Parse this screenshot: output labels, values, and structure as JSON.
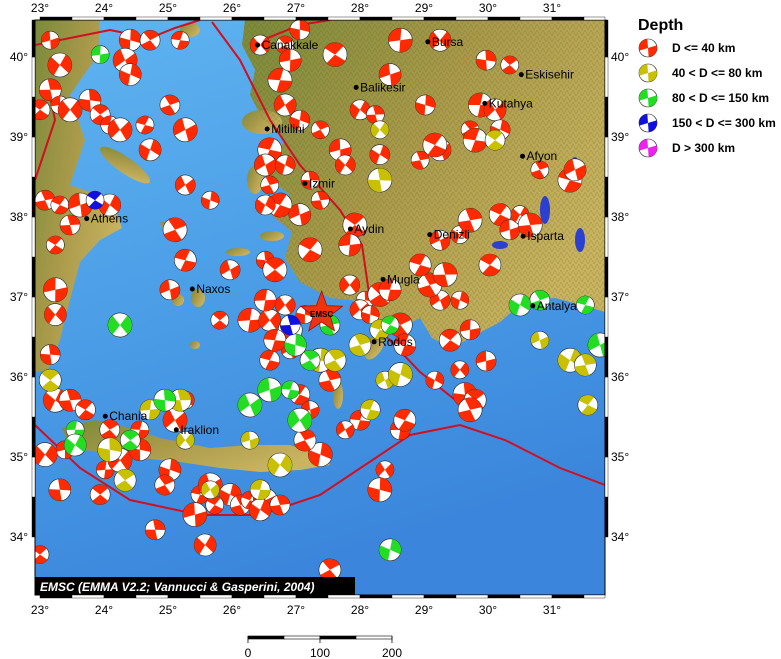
{
  "legend": {
    "title": "Depth",
    "items": [
      {
        "label": "D <= 40 km",
        "color": "#ff2a00"
      },
      {
        "label": "40 < D <= 80 km",
        "color": "#c8c000"
      },
      {
        "label": "80 < D <= 150 km",
        "color": "#22dd22"
      },
      {
        "label": "150 < D <= 300 km",
        "color": "#1010e0"
      },
      {
        "label": "D > 300 km",
        "color": "#ee22ee"
      }
    ]
  },
  "credit": "EMSC (EMMA V2.2; Vannucci & Gasperini, 2004)",
  "epicenter": {
    "label": "EMSC",
    "lon": 27.4,
    "lat": 36.8,
    "color": "#ee3311"
  },
  "axes": {
    "lon_ticks": [
      "23°",
      "24°",
      "25°",
      "26°",
      "27°",
      "28°",
      "29°",
      "30°",
      "31°"
    ],
    "lat_ticks": [
      "40°",
      "39°",
      "38°",
      "37°",
      "36°",
      "35°",
      "34°"
    ],
    "lon_range": [
      22.92,
      31.8
    ],
    "lat_range": [
      33.7,
      40.46
    ]
  },
  "scale_bar": {
    "labels": [
      "0",
      "100",
      "200"
    ],
    "unit_max": 200
  },
  "cities": [
    {
      "name": "Canakkale",
      "lon": 26.4,
      "lat": 40.15
    },
    {
      "name": "Bursa",
      "lon": 29.06,
      "lat": 40.19
    },
    {
      "name": "Balikesir",
      "lon": 27.94,
      "lat": 39.62
    },
    {
      "name": "Eskisehir",
      "lon": 30.52,
      "lat": 39.78
    },
    {
      "name": "Kutahya",
      "lon": 29.95,
      "lat": 39.42
    },
    {
      "name": "Mitilini",
      "lon": 26.55,
      "lat": 39.1
    },
    {
      "name": "Izmir",
      "lon": 27.14,
      "lat": 38.42
    },
    {
      "name": "Aydin",
      "lon": 27.85,
      "lat": 37.85
    },
    {
      "name": "Denizli",
      "lon": 29.09,
      "lat": 37.78
    },
    {
      "name": "Afyon",
      "lon": 30.54,
      "lat": 38.76
    },
    {
      "name": "Isparta",
      "lon": 30.55,
      "lat": 37.76
    },
    {
      "name": "Mugla",
      "lon": 28.36,
      "lat": 37.22
    },
    {
      "name": "Rodos",
      "lon": 28.22,
      "lat": 36.44
    },
    {
      "name": "Antalya",
      "lon": 30.7,
      "lat": 36.89
    },
    {
      "name": "Athens",
      "lon": 23.73,
      "lat": 37.98
    },
    {
      "name": "Naxos",
      "lon": 25.38,
      "lat": 37.1
    },
    {
      "name": "Chania",
      "lon": 24.02,
      "lat": 35.51
    },
    {
      "name": "Iraklion",
      "lon": 25.13,
      "lat": 35.34
    }
  ],
  "events": [
    [
      23.16,
      40.21,
      0
    ],
    [
      23.31,
      39.9,
      0
    ],
    [
      23.16,
      39.59,
      0
    ],
    [
      23.0,
      39.34,
      0
    ],
    [
      23.31,
      39.4,
      0
    ],
    [
      23.47,
      39.34,
      0
    ],
    [
      23.78,
      39.46,
      0
    ],
    [
      23.94,
      39.28,
      0
    ],
    [
      24.09,
      39.15,
      0
    ],
    [
      24.25,
      39.09,
      0
    ],
    [
      24.41,
      40.21,
      0
    ],
    [
      24.72,
      40.21,
      0
    ],
    [
      25.19,
      40.21,
      0
    ],
    [
      24.33,
      39.96,
      0
    ],
    [
      24.41,
      39.78,
      0
    ],
    [
      25.03,
      39.4,
      0
    ],
    [
      24.64,
      39.15,
      0
    ],
    [
      25.27,
      39.09,
      0
    ],
    [
      24.72,
      38.84,
      0
    ],
    [
      23.08,
      38.21,
      0
    ],
    [
      23.31,
      38.15,
      0
    ],
    [
      23.63,
      38.15,
      0
    ],
    [
      24.09,
      38.15,
      0
    ],
    [
      23.47,
      37.9,
      0
    ],
    [
      23.24,
      37.65,
      0
    ],
    [
      23.24,
      37.09,
      0
    ],
    [
      23.24,
      36.78,
      0
    ],
    [
      23.16,
      36.28,
      0
    ],
    [
      25.81,
      36.71,
      0
    ],
    [
      26.28,
      36.71,
      0
    ],
    [
      26.59,
      36.71,
      0
    ],
    [
      27.06,
      40.34,
      0
    ],
    [
      26.83,
      40.15,
      0
    ],
    [
      26.75,
      39.71,
      0
    ],
    [
      26.83,
      39.4,
      0
    ],
    [
      27.06,
      39.21,
      0
    ],
    [
      27.38,
      39.09,
      0
    ],
    [
      26.59,
      38.84,
      0
    ],
    [
      26.52,
      38.65,
      0
    ],
    [
      26.83,
      38.65,
      0
    ],
    [
      26.59,
      38.4,
      0
    ],
    [
      26.75,
      38.15,
      0
    ],
    [
      27.06,
      38.03,
      0
    ],
    [
      26.52,
      38.15,
      0
    ],
    [
      27.38,
      38.21,
      0
    ],
    [
      27.22,
      37.59,
      0
    ],
    [
      27.69,
      38.84,
      0
    ],
    [
      27.77,
      38.65,
      0
    ],
    [
      27.22,
      38.46,
      0
    ],
    [
      27.92,
      37.9,
      0
    ],
    [
      27.84,
      37.65,
      0
    ],
    [
      27.84,
      37.15,
      0
    ],
    [
      28.08,
      36.96,
      0
    ],
    [
      28.31,
      37.03,
      0
    ],
    [
      28.47,
      37.09,
      0
    ],
    [
      28.0,
      36.84,
      0
    ],
    [
      28.16,
      36.78,
      0
    ],
    [
      28.63,
      36.65,
      0
    ],
    [
      28.7,
      36.4,
      0
    ],
    [
      29.25,
      36.96,
      0
    ],
    [
      29.56,
      36.96,
      0
    ],
    [
      29.09,
      37.15,
      0
    ],
    [
      28.94,
      37.4,
      0
    ],
    [
      29.25,
      37.71,
      0
    ],
    [
      29.56,
      37.78,
      0
    ],
    [
      29.72,
      37.96,
      0
    ],
    [
      30.19,
      38.03,
      0
    ],
    [
      30.34,
      37.84,
      0
    ],
    [
      30.5,
      38.03,
      0
    ],
    [
      29.33,
      37.28,
      0
    ],
    [
      29.41,
      36.46,
      0
    ],
    [
      29.72,
      36.59,
      0
    ],
    [
      29.56,
      36.09,
      0
    ],
    [
      29.64,
      35.78,
      0
    ],
    [
      29.8,
      35.71,
      0
    ],
    [
      28.63,
      35.34,
      0
    ],
    [
      28.39,
      34.84,
      0
    ],
    [
      28.31,
      34.59,
      0
    ],
    [
      27.53,
      33.59,
      0
    ],
    [
      28.0,
      35.46,
      0
    ],
    [
      27.77,
      35.34,
      0
    ],
    [
      27.38,
      35.03,
      0
    ],
    [
      27.14,
      35.21,
      0
    ],
    [
      26.59,
      36.21,
      0
    ],
    [
      26.91,
      36.34,
      0
    ],
    [
      27.38,
      36.21,
      0
    ],
    [
      27.53,
      35.96,
      0
    ],
    [
      27.06,
      35.78,
      0
    ],
    [
      27.22,
      35.59,
      0
    ],
    [
      23.24,
      35.71,
      0
    ],
    [
      23.47,
      35.71,
      0
    ],
    [
      23.71,
      35.59,
      0
    ],
    [
      23.39,
      35.09,
      0
    ],
    [
      23.08,
      35.03,
      0
    ],
    [
      23.31,
      34.59,
      0
    ],
    [
      23.94,
      34.53,
      0
    ],
    [
      24.02,
      34.84,
      0
    ],
    [
      24.25,
      34.96,
      0
    ],
    [
      24.56,
      35.09,
      0
    ],
    [
      24.09,
      35.34,
      0
    ],
    [
      24.56,
      35.34,
      0
    ],
    [
      25.11,
      35.46,
      0
    ],
    [
      25.03,
      34.84,
      0
    ],
    [
      24.95,
      34.65,
      0
    ],
    [
      25.5,
      34.53,
      0
    ],
    [
      25.66,
      34.65,
      0
    ],
    [
      25.97,
      34.53,
      0
    ],
    [
      26.13,
      34.4,
      0
    ],
    [
      26.28,
      34.46,
      0
    ],
    [
      26.52,
      34.46,
      0
    ],
    [
      26.44,
      34.34,
      0
    ],
    [
      26.75,
      34.4,
      0
    ],
    [
      25.73,
      34.4,
      0
    ],
    [
      25.42,
      34.28,
      0
    ],
    [
      25.58,
      33.9,
      0
    ],
    [
      24.8,
      34.09,
      0
    ],
    [
      23.0,
      33.78,
      0
    ],
    [
      28.63,
      40.21,
      0
    ],
    [
      29.25,
      40.21,
      0
    ],
    [
      29.97,
      39.96,
      0
    ],
    [
      30.34,
      39.9,
      0
    ],
    [
      29.88,
      39.4,
      0
    ],
    [
      30.11,
      39.34,
      0
    ],
    [
      29.02,
      39.4,
      0
    ],
    [
      29.72,
      39.09,
      0
    ],
    [
      29.8,
      38.96,
      0
    ],
    [
      29.25,
      38.84,
      0
    ],
    [
      30.19,
      39.09,
      0
    ],
    [
      30.81,
      38.59,
      0
    ],
    [
      31.28,
      38.46,
      0
    ],
    [
      31.36,
      38.59,
      0
    ],
    [
      28.31,
      38.78,
      0
    ],
    [
      28.94,
      38.71,
      0
    ],
    [
      29.17,
      38.9,
      0
    ],
    [
      28.47,
      39.78,
      0
    ],
    [
      28.0,
      39.34,
      0
    ],
    [
      28.24,
      39.28,
      0
    ],
    [
      27.61,
      40.03,
      0
    ],
    [
      26.91,
      39.96,
      0
    ],
    [
      26.44,
      40.15,
      0
    ],
    [
      26.52,
      37.46,
      0
    ],
    [
      26.67,
      37.34,
      0
    ],
    [
      26.52,
      36.96,
      0
    ],
    [
      26.83,
      36.9,
      0
    ],
    [
      27.14,
      36.78,
      0
    ],
    [
      26.91,
      36.59,
      0
    ],
    [
      26.67,
      36.46,
      0
    ],
    [
      25.27,
      38.4,
      0
    ],
    [
      25.66,
      38.21,
      0
    ],
    [
      25.11,
      37.84,
      0
    ],
    [
      25.27,
      37.46,
      0
    ],
    [
      25.97,
      37.34,
      0
    ],
    [
      29.17,
      35.96,
      0
    ],
    [
      29.72,
      35.59,
      0
    ],
    [
      28.7,
      35.46,
      0
    ],
    [
      25.03,
      37.09,
      0
    ],
    [
      25.27,
      35.71,
      0
    ],
    [
      30.66,
      37.9,
      0
    ],
    [
      30.03,
      37.4,
      0
    ],
    [
      29.97,
      36.2,
      0
    ],
    [
      28.31,
      39.09,
      1
    ],
    [
      28.31,
      38.46,
      1
    ],
    [
      23.16,
      35.96,
      1
    ],
    [
      24.72,
      35.59,
      1
    ],
    [
      25.27,
      35.21,
      1
    ],
    [
      24.09,
      35.09,
      1
    ],
    [
      24.33,
      34.71,
      1
    ],
    [
      26.44,
      34.59,
      1
    ],
    [
      25.66,
      34.59,
      1
    ],
    [
      27.38,
      36.21,
      1
    ],
    [
      27.61,
      36.21,
      1
    ],
    [
      28.16,
      35.59,
      1
    ],
    [
      28.39,
      35.96,
      1
    ],
    [
      28.63,
      36.03,
      1
    ],
    [
      28.0,
      36.4,
      1
    ],
    [
      28.31,
      36.59,
      1
    ],
    [
      30.81,
      36.46,
      1
    ],
    [
      31.28,
      36.21,
      1
    ],
    [
      31.52,
      36.15,
      1
    ],
    [
      31.56,
      35.65,
      1
    ],
    [
      26.28,
      35.21,
      1
    ],
    [
      26.75,
      34.9,
      1
    ],
    [
      25.19,
      35.71,
      1
    ],
    [
      30.11,
      38.96,
      1
    ],
    [
      23.94,
      40.03,
      2
    ],
    [
      24.25,
      36.65,
      2
    ],
    [
      24.95,
      35.71,
      2
    ],
    [
      24.41,
      35.21,
      2
    ],
    [
      23.55,
      35.34,
      2
    ],
    [
      27.06,
      35.46,
      2
    ],
    [
      26.99,
      36.4,
      2
    ],
    [
      27.22,
      36.21,
      2
    ],
    [
      26.91,
      35.84,
      2
    ],
    [
      26.28,
      35.65,
      2
    ],
    [
      28.47,
      33.84,
      2
    ],
    [
      30.81,
      36.96,
      2
    ],
    [
      31.52,
      36.9,
      2
    ],
    [
      31.75,
      36.4,
      2
    ],
    [
      30.5,
      36.9,
      2
    ],
    [
      27.53,
      36.65,
      2
    ],
    [
      28.47,
      36.65,
      2
    ],
    [
      26.59,
      35.84,
      2
    ],
    [
      23.55,
      35.15,
      2
    ],
    [
      26.91,
      36.65,
      3
    ],
    [
      23.86,
      38.21,
      3
    ]
  ]
}
